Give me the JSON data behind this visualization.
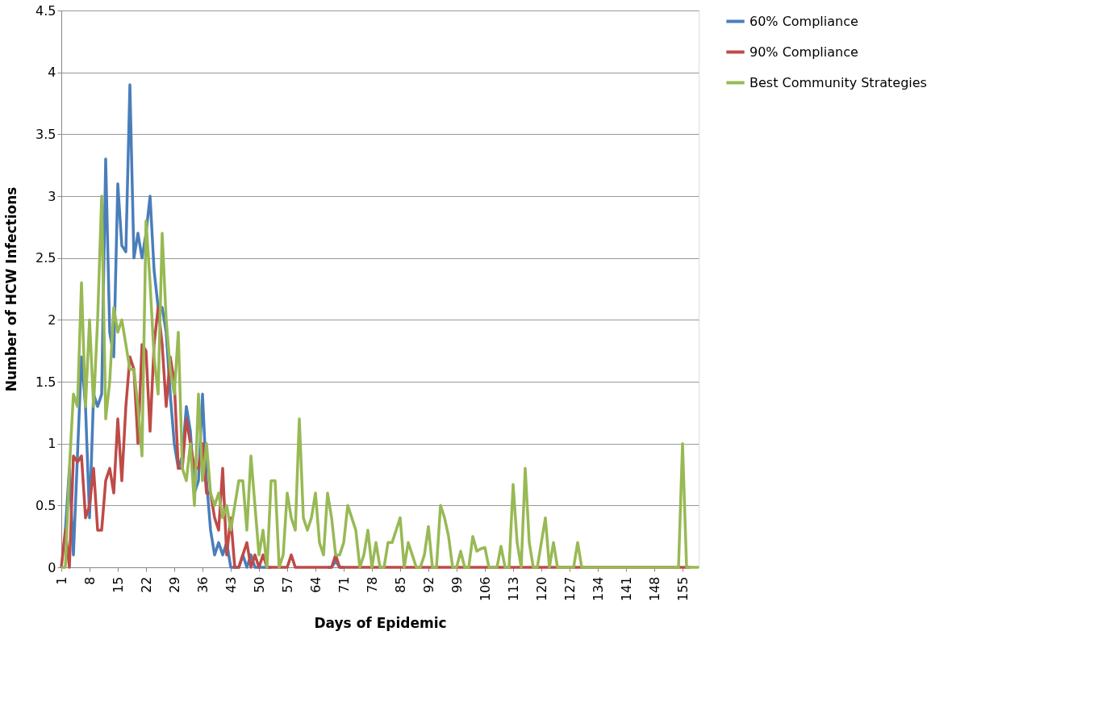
{
  "chart_data": {
    "type": "line",
    "xlabel": "Days of Epidemic",
    "ylabel": "Number of HCW Infections",
    "x": [
      1,
      2,
      3,
      4,
      5,
      6,
      7,
      8,
      9,
      10,
      11,
      12,
      13,
      14,
      15,
      16,
      17,
      18,
      19,
      20,
      21,
      22,
      23,
      24,
      25,
      26,
      27,
      28,
      29,
      30,
      31,
      32,
      33,
      34,
      35,
      36,
      37,
      38,
      39,
      40,
      41,
      42,
      43,
      44,
      45,
      46,
      47,
      48,
      49,
      50,
      51,
      52,
      53,
      54,
      55,
      56,
      57,
      58,
      59,
      60,
      61,
      62,
      63,
      64,
      65,
      66,
      67,
      68,
      69,
      70,
      71,
      72,
      73,
      74,
      75,
      76,
      77,
      78,
      79,
      80,
      81,
      82,
      83,
      84,
      85,
      86,
      87,
      88,
      89,
      90,
      91,
      92,
      93,
      94,
      95,
      96,
      97,
      98,
      99,
      100,
      101,
      102,
      103,
      104,
      105,
      106,
      107,
      108,
      109,
      110,
      111,
      112,
      113,
      114,
      115,
      116,
      117,
      118,
      119,
      120,
      121,
      122,
      123,
      124,
      125,
      126,
      127,
      128,
      129,
      130,
      131,
      132,
      133,
      134,
      135,
      136,
      137,
      138,
      139,
      140,
      141,
      142,
      143,
      144,
      145,
      146,
      147,
      148,
      149,
      150,
      151,
      152,
      153,
      154,
      155,
      156,
      157,
      158,
      159
    ],
    "xlim": [
      1,
      159
    ],
    "xticks": [
      1,
      8,
      15,
      22,
      29,
      36,
      43,
      50,
      57,
      64,
      71,
      78,
      85,
      92,
      99,
      106,
      113,
      120,
      127,
      134,
      141,
      148,
      155
    ],
    "ylim": [
      0,
      4.5
    ],
    "yticks": [
      0,
      0.5,
      1,
      1.5,
      2,
      2.5,
      3,
      3.5,
      4,
      4.5
    ],
    "grid": "y",
    "legend": "right",
    "marker": "none",
    "line_style": "solid",
    "series": [
      {
        "name": "60% Compliance",
        "color": "#4a7ebb",
        "values": [
          null,
          0.3,
          0.8,
          0.1,
          0.9,
          1.7,
          1.3,
          0.4,
          1.4,
          1.3,
          1.4,
          3.3,
          1.9,
          1.7,
          3.1,
          2.6,
          2.55,
          3.9,
          2.5,
          2.7,
          2.5,
          2.7,
          3.0,
          2.4,
          2.1,
          2.1,
          1.9,
          1.4,
          1.0,
          0.8,
          0.9,
          1.3,
          1.1,
          0.6,
          0.7,
          1.4,
          0.7,
          0.3,
          0.1,
          0.2,
          0.1,
          0.2,
          0,
          0,
          0,
          0.1,
          0,
          0.1,
          0,
          0,
          0,
          0,
          0,
          null,
          null,
          null,
          null,
          null,
          null,
          null,
          null,
          null,
          null,
          null,
          null,
          null,
          0,
          0,
          0.05,
          0,
          0,
          null,
          null,
          null,
          null,
          null,
          null,
          null,
          null,
          null,
          null,
          null,
          null,
          null,
          null,
          null,
          null,
          null,
          null,
          null,
          null,
          null,
          null,
          null,
          null,
          null,
          null,
          null,
          null,
          null,
          null,
          null,
          null,
          null,
          null,
          null,
          null,
          null,
          null,
          null,
          null,
          null,
          null,
          null,
          null,
          null,
          null,
          null,
          null,
          null,
          null,
          null,
          null,
          null,
          null,
          null,
          null,
          null,
          null,
          null,
          null,
          null,
          null,
          null,
          null,
          null,
          null,
          null,
          null,
          null,
          null,
          null,
          null,
          null,
          null,
          null,
          null,
          null,
          null,
          null,
          null,
          null,
          null,
          null,
          null,
          null,
          null,
          null,
          null
        ]
      },
      {
        "name": "90% Compliance",
        "color": "#be4b48",
        "values": [
          0,
          0.3,
          0,
          0.9,
          0.85,
          0.9,
          0.4,
          0.5,
          0.8,
          0.3,
          0.3,
          0.7,
          0.8,
          0.6,
          1.2,
          0.7,
          1.3,
          1.7,
          1.6,
          1.0,
          1.8,
          1.75,
          1.1,
          1.8,
          2.1,
          1.8,
          1.3,
          1.7,
          1.5,
          0.8,
          0.8,
          1.2,
          1.0,
          0.8,
          0.8,
          1.0,
          0.6,
          0.6,
          0.4,
          0.3,
          0.8,
          0.1,
          0.4,
          0,
          0,
          0.1,
          0.2,
          0,
          0.1,
          0,
          0.1,
          0,
          0,
          0,
          0,
          0,
          0,
          0.1,
          0,
          0,
          0,
          0,
          0,
          0,
          0,
          0,
          0,
          0,
          0.1,
          0,
          0,
          0,
          0,
          0,
          0,
          0,
          0,
          0,
          0,
          0,
          0,
          0,
          0,
          0,
          0,
          0,
          0,
          0,
          0,
          0,
          0,
          0,
          0,
          0,
          0,
          0,
          0,
          0,
          0,
          0,
          0,
          0,
          0,
          0,
          0,
          0,
          0,
          0,
          0,
          0,
          0,
          0,
          0,
          0,
          0,
          0,
          0,
          0,
          0,
          0,
          0,
          0,
          0,
          0,
          0,
          0,
          0,
          0,
          0,
          0,
          0,
          0,
          0,
          0,
          0,
          0,
          0,
          0,
          0,
          0,
          0,
          0,
          0,
          0,
          0,
          0,
          0,
          0,
          0,
          0,
          0,
          0,
          0,
          0,
          0,
          0,
          0,
          null,
          null
        ]
      },
      {
        "name": "Best Community Strategies",
        "color": "#98b954",
        "values": [
          0,
          0,
          0.8,
          1.4,
          1.3,
          2.3,
          1.3,
          2.0,
          1.3,
          2.0,
          3.0,
          1.2,
          1.5,
          2.1,
          1.9,
          2.0,
          1.8,
          1.6,
          1.6,
          1.3,
          0.9,
          2.8,
          2.3,
          1.7,
          1.4,
          2.7,
          2.0,
          1.6,
          1.4,
          1.9,
          0.8,
          0.7,
          1.0,
          0.5,
          1.4,
          0.7,
          1.0,
          0.6,
          0.5,
          0.6,
          0.4,
          0.5,
          0.3,
          0.5,
          0.7,
          0.7,
          0.3,
          0.9,
          0.5,
          0.1,
          0.3,
          0,
          0.7,
          0.7,
          0,
          0.1,
          0.6,
          0.4,
          0.3,
          1.2,
          0.4,
          0.3,
          0.4,
          0.6,
          0.2,
          0.1,
          0.6,
          0.4,
          0.1,
          0.1,
          0.2,
          0.5,
          0.4,
          0.3,
          0,
          0.1,
          0.3,
          0,
          0.2,
          0,
          0,
          0.2,
          0.2,
          0.3,
          0.4,
          0,
          0.2,
          0.1,
          0,
          0,
          0.1,
          0.33,
          0,
          0,
          0.5,
          0.4,
          0.25,
          0,
          0,
          0.13,
          0,
          0,
          0.25,
          0.13,
          0.15,
          0.16,
          0,
          0,
          0,
          0.17,
          0,
          0,
          0.67,
          0.2,
          0,
          0.8,
          0.2,
          0,
          0,
          0.2,
          0.4,
          0,
          0.2,
          0,
          0,
          0,
          0,
          0,
          0.2,
          0,
          0,
          0,
          0,
          0,
          0,
          0,
          0,
          0,
          0,
          0,
          0,
          0,
          0,
          0,
          0,
          0,
          0,
          0,
          0,
          0,
          0,
          0,
          0,
          0,
          1.0,
          0,
          0,
          0,
          0
        ]
      }
    ]
  }
}
